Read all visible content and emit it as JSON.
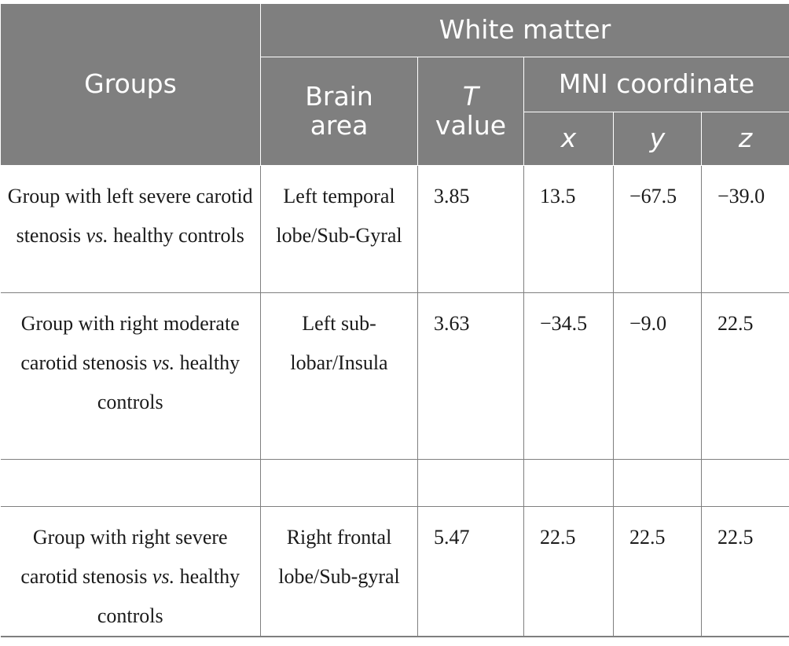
{
  "header": {
    "groups": "Groups",
    "white_matter": "White matter",
    "brain_area": "Brain area",
    "t_value_letter": "T",
    "t_value_word": "value",
    "mni_coordinate": "MNI coordinate",
    "x": "x",
    "y": "y",
    "z": "z"
  },
  "rows": [
    {
      "group_pre": "Group with left severe carotid stenosis ",
      "group_vs": "vs.",
      "group_post": " healthy controls",
      "brain_area": "Left temporal lobe/Sub-Gyral",
      "t_value": "3.85",
      "x": "13.5",
      "y": "−67.5",
      "z": "−39.0"
    },
    {
      "group_pre": "Group with right moderate carotid stenosis ",
      "group_vs": "vs.",
      "group_post": " healthy controls",
      "brain_area": "Left sub-lobar/Insula",
      "t_value": "3.63",
      "x": "−34.5",
      "y": "−9.0",
      "z": "22.5"
    },
    {
      "group_pre": "",
      "group_vs": "",
      "group_post": "",
      "brain_area": "",
      "t_value": "",
      "x": "",
      "y": "",
      "z": ""
    },
    {
      "group_pre": "Group with right severe carotid stenosis ",
      "group_vs": "vs.",
      "group_post": " healthy controls",
      "brain_area": "Right frontal lobe/Sub-gyral",
      "t_value": "5.47",
      "x": "22.5",
      "y": "22.5",
      "z": "22.5"
    }
  ]
}
